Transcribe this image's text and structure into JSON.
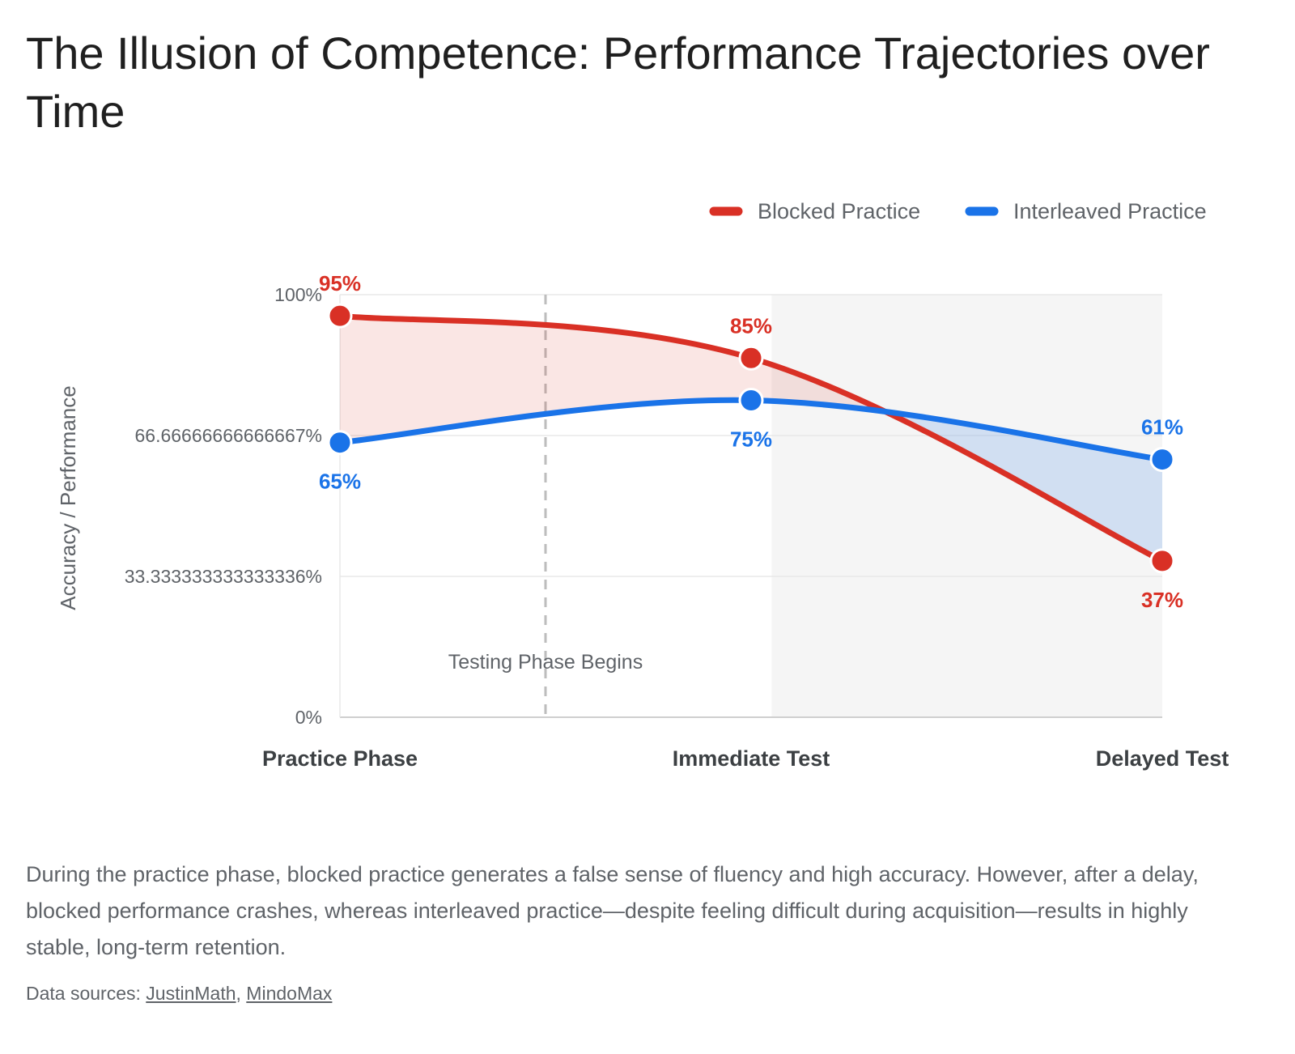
{
  "title": "The Illusion of Competence: Performance Trajectories over Time",
  "caption": "During the practice phase, blocked practice generates a false sense of fluency and high accuracy. However, after a delay, blocked performance crashes, whereas interleaved practice—despite feeling difficult during acquisition—results in highly stable, long-term retention.",
  "sources": {
    "prefix": "Data sources:",
    "links": [
      "JustinMath",
      "MindoMax"
    ],
    "separator": ","
  },
  "colors": {
    "blocked": "#d93025",
    "interleaved": "#1a73e8",
    "shaded_region": "#f5f5f5"
  },
  "chart_data": {
    "type": "line",
    "title": "The Illusion of Competence: Performance Trajectories over Time",
    "xlabel": "",
    "ylabel": "Accuracy / Performance",
    "categories": [
      "Practice Phase",
      "Immediate Test",
      "Delayed Test"
    ],
    "ylim": [
      0,
      100
    ],
    "yticks": [
      {
        "value": 0,
        "label": "0%"
      },
      {
        "value": 33.333333333333336,
        "label": "33.333333333333336%"
      },
      {
        "value": 66.66666666666667,
        "label": "66.66666666666667%"
      },
      {
        "value": 100,
        "label": "100%"
      }
    ],
    "series": [
      {
        "name": "Blocked Practice",
        "color": "#d93025",
        "values": [
          95,
          85,
          37
        ],
        "labels": [
          "95%",
          "85%",
          "37%"
        ]
      },
      {
        "name": "Interleaved Practice",
        "color": "#1a73e8",
        "values": [
          65,
          75,
          61
        ],
        "labels": [
          "65%",
          "75%",
          "61%"
        ]
      }
    ],
    "annotations": [
      {
        "text": "Testing Phase Begins",
        "x_position": 0.5,
        "style": "dashed vertical line"
      }
    ],
    "shaded_region": {
      "from": 1.05,
      "to": 2
    },
    "grid": true,
    "legend": "top-right"
  }
}
